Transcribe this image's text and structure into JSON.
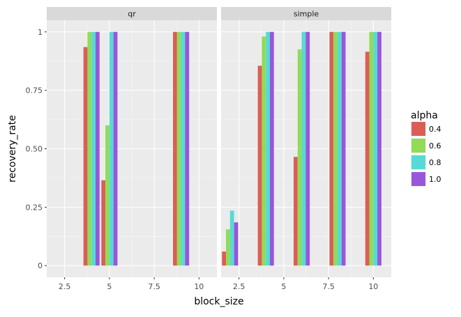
{
  "chart_data": {
    "type": "bar",
    "x_label": "block_size",
    "y_label": "recovery_rate",
    "x_range": [
      1.5,
      11.0
    ],
    "y_range": [
      -0.05,
      1.05
    ],
    "x_ticks": [
      2.5,
      5,
      7.5,
      10
    ],
    "x_tick_labels": [
      "2.5",
      "5",
      "7.5",
      "10"
    ],
    "y_ticks": [
      0,
      0.25,
      0.5,
      0.75,
      1
    ],
    "y_tick_labels": [
      "0",
      "0.25",
      "0.50",
      "0.75",
      "1"
    ],
    "grid": true,
    "legend": {
      "title": "alpha",
      "position": "right",
      "entries": [
        {
          "label": "0.4",
          "color": "#DB5E56"
        },
        {
          "label": "0.6",
          "color": "#91DB57"
        },
        {
          "label": "0.8",
          "color": "#56DAD5"
        },
        {
          "label": "1.0",
          "color": "#9A56DB"
        }
      ]
    },
    "panels": [
      {
        "name": "qr",
        "x": [
          4,
          5,
          9
        ],
        "series": [
          {
            "alpha": "0.4",
            "values": [
              0.935,
              0.365,
              1.0
            ]
          },
          {
            "alpha": "0.6",
            "values": [
              1.0,
              0.6,
              1.0
            ]
          },
          {
            "alpha": "0.8",
            "values": [
              1.0,
              1.0,
              1.0
            ]
          },
          {
            "alpha": "1.0",
            "values": [
              1.0,
              1.0,
              1.0
            ]
          }
        ]
      },
      {
        "name": "simple",
        "x": [
          2,
          4,
          6,
          8,
          10
        ],
        "series": [
          {
            "alpha": "0.4",
            "values": [
              0.06,
              0.855,
              0.465,
              1.0,
              0.915
            ]
          },
          {
            "alpha": "0.6",
            "values": [
              0.155,
              0.98,
              0.925,
              1.0,
              1.0
            ]
          },
          {
            "alpha": "0.8",
            "values": [
              0.235,
              1.0,
              1.0,
              1.0,
              1.0
            ]
          },
          {
            "alpha": "1.0",
            "values": [
              0.185,
              1.0,
              1.0,
              1.0,
              1.0
            ]
          }
        ]
      }
    ]
  }
}
